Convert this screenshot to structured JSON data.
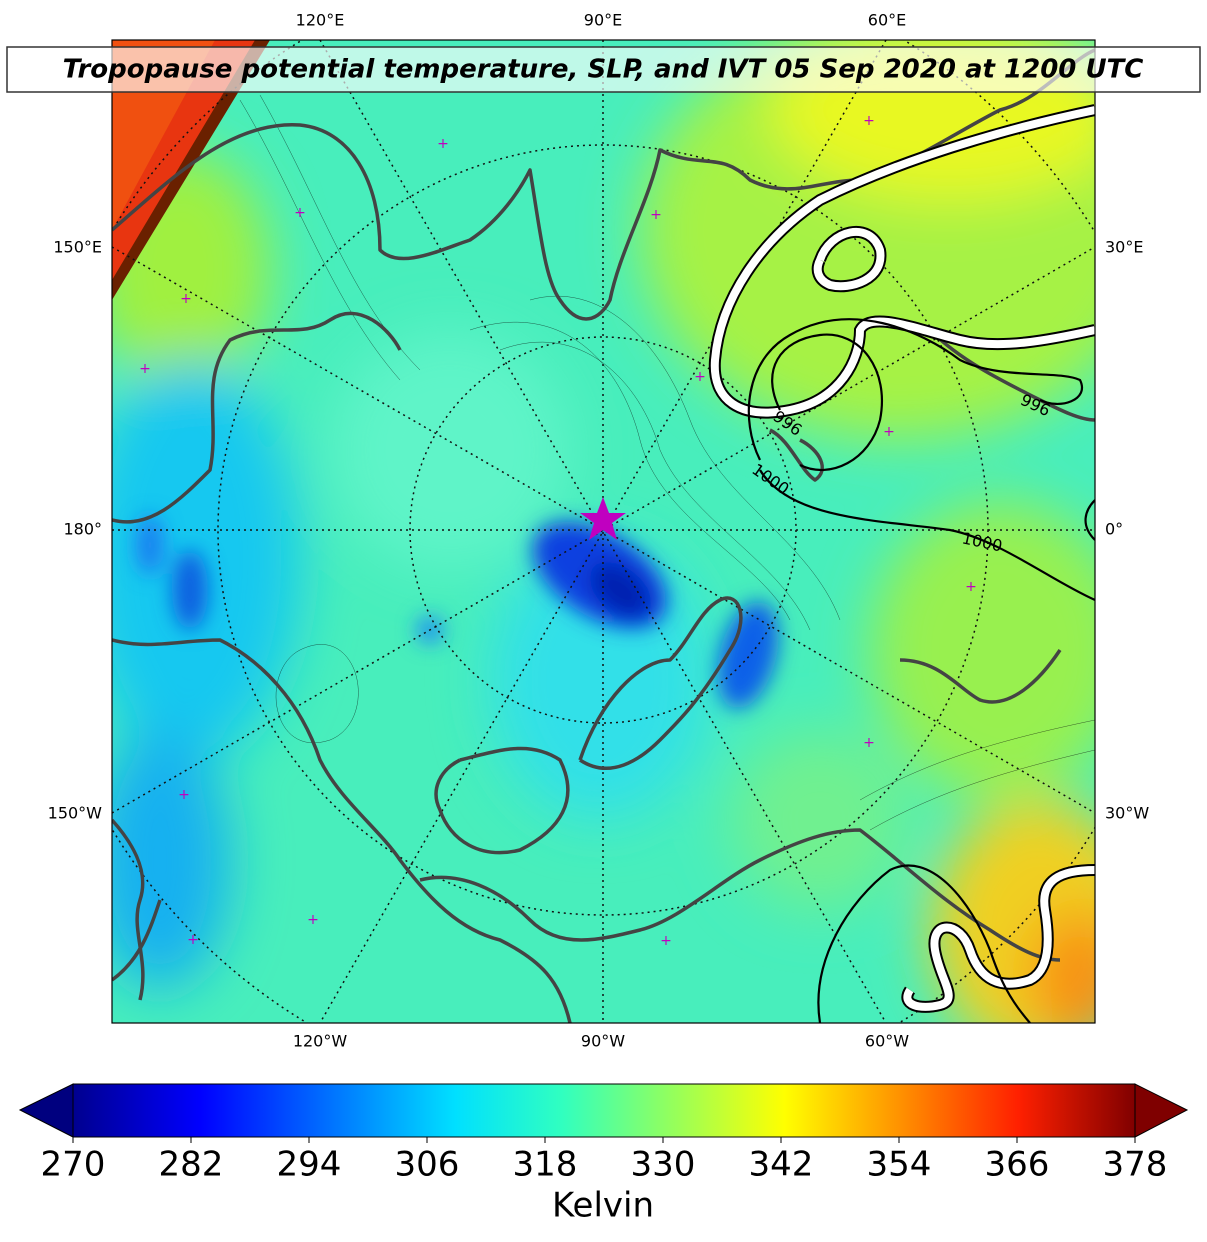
{
  "title": "Tropopause potential temperature, SLP, and IVT 05 Sep 2020 at 1200 UTC",
  "map": {
    "lon_labels": {
      "top": [
        "120°E",
        "90°E",
        "60°E"
      ],
      "left": [
        "150°E",
        "180°",
        "150°W"
      ],
      "right": [
        "30°E",
        "0°",
        "30°W"
      ],
      "bottom": [
        "120°W",
        "90°W",
        "60°W"
      ]
    },
    "contour_labels": [
      "996",
      "1000",
      "996",
      "1000"
    ]
  },
  "colorbar": {
    "range": [
      270,
      378
    ],
    "ticks": [
      270,
      282,
      294,
      306,
      318,
      330,
      342,
      354,
      366,
      378
    ],
    "label": "Kelvin"
  }
}
